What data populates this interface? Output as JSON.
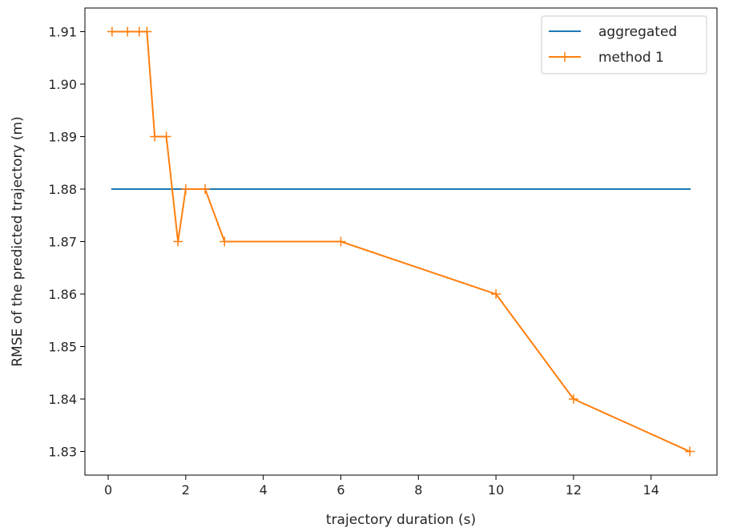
{
  "chart_data": {
    "type": "line",
    "title": "",
    "xlabel": "trajectory duration (s)",
    "ylabel": "RMSE of the predicted trajectory (m)",
    "xlim": [
      -0.6,
      15.7
    ],
    "ylim": [
      1.8255,
      1.9145
    ],
    "xticks": [
      0,
      2,
      4,
      6,
      8,
      10,
      12,
      14
    ],
    "yticks": [
      1.83,
      1.84,
      1.85,
      1.86,
      1.87,
      1.88,
      1.89,
      1.9,
      1.91
    ],
    "xtick_labels": [
      "0",
      "2",
      "4",
      "6",
      "8",
      "10",
      "12",
      "14"
    ],
    "ytick_labels": [
      "1.83",
      "1.84",
      "1.85",
      "1.86",
      "1.87",
      "1.88",
      "1.89",
      "1.90",
      "1.91"
    ],
    "grid": false,
    "legend": "top-right",
    "series": [
      {
        "name": "aggregated",
        "color": "#1f77b4",
        "marker": "none",
        "x": [
          0.1,
          15
        ],
        "y": [
          1.88,
          1.88
        ]
      },
      {
        "name": "method 1",
        "color": "#ff7f0e",
        "marker": "plus",
        "x": [
          0.1,
          0.5,
          0.8,
          1.0,
          1.2,
          1.5,
          1.8,
          2.0,
          2.5,
          3.0,
          6.0,
          10.0,
          12.0,
          15.0
        ],
        "y": [
          1.91,
          1.91,
          1.91,
          1.91,
          1.89,
          1.89,
          1.87,
          1.88,
          1.88,
          1.87,
          1.87,
          1.86,
          1.84,
          1.83
        ]
      }
    ]
  }
}
